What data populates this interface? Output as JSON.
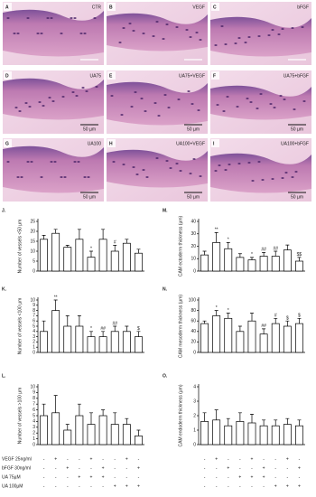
{
  "images": {
    "panels": [
      {
        "letter": "A",
        "label": "CTR"
      },
      {
        "letter": "B",
        "label": "VEGF"
      },
      {
        "letter": "C",
        "label": "bFGF"
      },
      {
        "letter": "D",
        "label": "UA75",
        "scale": "50 µm"
      },
      {
        "letter": "E",
        "label": "UA75+VEGF",
        "scale": "50 µm"
      },
      {
        "letter": "F",
        "label": "UA75+bFGF",
        "scale": "50 µm"
      },
      {
        "letter": "G",
        "label": "UA100",
        "scale": "50 µm"
      },
      {
        "letter": "H",
        "label": "UA100+VEGF",
        "scale": "50 µm"
      },
      {
        "letter": "I",
        "label": "UA100+bFGF",
        "scale": "50 µm"
      }
    ]
  },
  "chart_data": [
    {
      "type": "bar",
      "panel": "J.",
      "ylabel": "Number of vessels <50 µm",
      "ylim": [
        0,
        25
      ],
      "yticks": [
        0,
        5,
        10,
        15,
        20,
        25
      ],
      "values": [
        16,
        19,
        12,
        16,
        7,
        16,
        10,
        14,
        9
      ],
      "errors": [
        2,
        2,
        1,
        5,
        3,
        5,
        3,
        2,
        2
      ],
      "annotations": [
        null,
        null,
        null,
        null,
        "*",
        null,
        "#",
        null,
        null
      ]
    },
    {
      "type": "bar",
      "panel": "K.",
      "ylabel": "Number of vessels <100 µm",
      "ylim": [
        0,
        10
      ],
      "yticks": [
        0,
        1,
        2,
        3,
        4,
        5,
        6,
        7,
        8,
        9,
        10
      ],
      "values": [
        4,
        8,
        5,
        5,
        3,
        3,
        4,
        4,
        3
      ],
      "errors": [
        2,
        2,
        2,
        2,
        1,
        1,
        1,
        1,
        1
      ],
      "annotations": [
        null,
        "**",
        null,
        null,
        "*",
        "##",
        "##",
        null,
        "$"
      ]
    },
    {
      "type": "bar",
      "panel": "L.",
      "ylabel": "Number of vessels >100 µm",
      "ylim": [
        0,
        10
      ],
      "yticks": [
        0,
        1,
        2,
        3,
        4,
        5,
        6,
        7,
        8,
        9,
        10
      ],
      "values": [
        5,
        5.5,
        2.5,
        5,
        3.5,
        5,
        3.5,
        3.5,
        1.5
      ],
      "errors": [
        2,
        3,
        1,
        2,
        2,
        1,
        2,
        1,
        1
      ]
    },
    {
      "type": "bar",
      "panel": "M.",
      "ylabel": "CAM ectoderm thickness (µm)",
      "ylim": [
        0,
        40
      ],
      "yticks": [
        0,
        10,
        20,
        30,
        40
      ],
      "values": [
        13,
        23,
        18,
        11,
        9,
        12,
        12,
        17,
        8
      ],
      "errors": [
        3,
        8,
        5,
        3,
        2,
        3,
        4,
        4,
        3
      ],
      "annotations": [
        null,
        "**",
        "*",
        null,
        "*",
        "##",
        "##",
        null,
        "$$"
      ]
    },
    {
      "type": "bar",
      "panel": "N.",
      "ylabel": "CAM mesoderm thickness (µm)",
      "ylim": [
        0,
        100
      ],
      "yticks": [
        0,
        20,
        40,
        60,
        80,
        100
      ],
      "values": [
        55,
        70,
        65,
        40,
        60,
        35,
        55,
        50,
        55
      ],
      "errors": [
        5,
        10,
        10,
        10,
        15,
        10,
        10,
        10,
        10
      ],
      "annotations": [
        null,
        "*",
        "*",
        null,
        null,
        "##",
        "#",
        "$",
        "$"
      ]
    },
    {
      "type": "bar",
      "panel": "O.",
      "ylabel": "CAM endoderm thickness (µm)",
      "ylim": [
        0,
        4
      ],
      "yticks": [
        0,
        1,
        2,
        3,
        4
      ],
      "values": [
        1.6,
        1.7,
        1.3,
        1.6,
        1.5,
        1.3,
        1.3,
        1.4,
        1.3
      ],
      "errors": [
        0.6,
        0.7,
        0.5,
        0.6,
        0.6,
        0.4,
        0.4,
        0.4,
        0.4
      ]
    }
  ],
  "treatments": [
    {
      "name": "VEGF 25ng/ml",
      "signs": [
        "-",
        "+",
        "-",
        "-",
        "+",
        "-",
        "-",
        "+",
        "-"
      ]
    },
    {
      "name": "bFGF 30ng/ml",
      "signs": [
        "-",
        "-",
        "+",
        "-",
        "-",
        "+",
        "-",
        "-",
        "+"
      ]
    },
    {
      "name": "UA 75µM",
      "signs": [
        "-",
        "-",
        "-",
        "+",
        "+",
        "+",
        "-",
        "-",
        "-"
      ]
    },
    {
      "name": "UA 100µM",
      "signs": [
        "-",
        "-",
        "-",
        "-",
        "-",
        "-",
        "+",
        "+",
        "+"
      ]
    }
  ]
}
